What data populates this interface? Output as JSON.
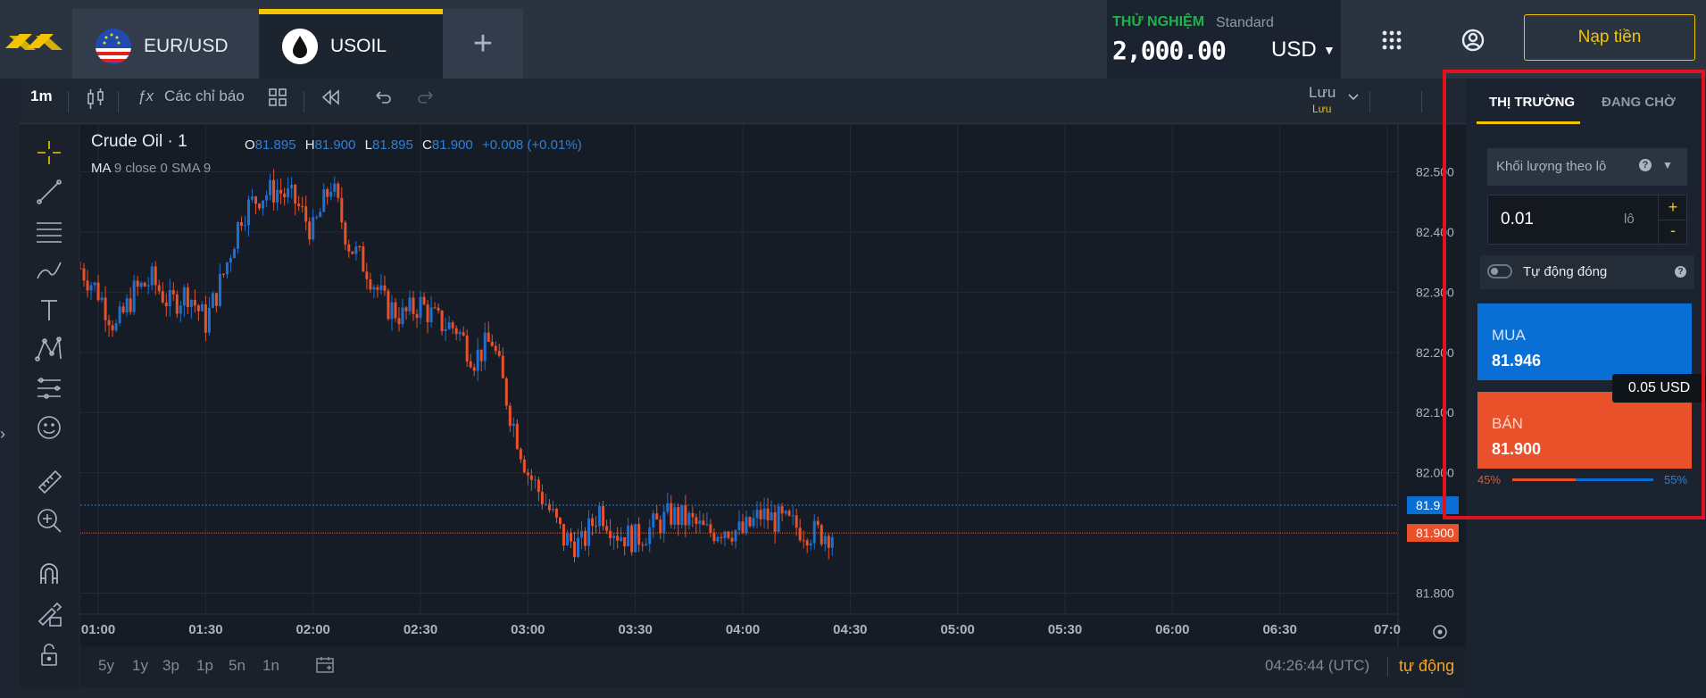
{
  "header": {
    "tabs": [
      {
        "label": "EUR/USD",
        "icon": "eu-us-flag-icon",
        "active": false
      },
      {
        "label": "USOIL",
        "icon": "oil-drop-icon",
        "active": true
      }
    ],
    "add_tab": "+",
    "account": {
      "mode": "THỬ NGHIỆM",
      "type": "Standard",
      "balance": "2,000.00",
      "currency": "USD"
    },
    "deposit_label": "Nạp tiền",
    "icons": [
      "exness-logo-icon",
      "apps-grid-icon",
      "user-profile-icon"
    ]
  },
  "toolbar": {
    "timeframe": "1m",
    "indicators_label": "Các chỉ báo",
    "save_label": "Lưu",
    "save_sub": "Lưu"
  },
  "chart": {
    "title": "Crude Oil · 1",
    "ohlc": {
      "o_label": "O",
      "o": "81.895",
      "h_label": "H",
      "h": "81.900",
      "l_label": "L",
      "l": "81.895",
      "c_label": "C",
      "c": "81.900",
      "change": "+0.008 (+0.01%)"
    },
    "ma_label": "MA",
    "ma_params": "9 close 0 SMA 9",
    "price_ticks": [
      "82.500",
      "82.400",
      "82.300",
      "82.200",
      "82.100",
      "82.000",
      "81.800"
    ],
    "time_ticks": [
      "01:00",
      "01:30",
      "02:00",
      "02:30",
      "03:00",
      "03:30",
      "04:00",
      "04:30",
      "05:00",
      "05:30",
      "06:00",
      "06:30",
      "07:0"
    ],
    "ask_label": "81.9",
    "bid_label": "81.900"
  },
  "chart_data": {
    "type": "candlestick",
    "symbol": "Crude Oil",
    "interval": "1",
    "ylim": [
      81.78,
      82.56
    ],
    "xlim": [
      "00:55",
      "07:03"
    ],
    "ask_line": 81.946,
    "bid_line": 81.9,
    "close_path": [
      {
        "t": "00:55",
        "v": 82.34
      },
      {
        "t": "01:00",
        "v": 82.3
      },
      {
        "t": "01:05",
        "v": 82.24
      },
      {
        "t": "01:10",
        "v": 82.3
      },
      {
        "t": "01:15",
        "v": 82.32
      },
      {
        "t": "01:20",
        "v": 82.28
      },
      {
        "t": "01:25",
        "v": 82.3
      },
      {
        "t": "01:30",
        "v": 82.25
      },
      {
        "t": "01:35",
        "v": 82.33
      },
      {
        "t": "01:40",
        "v": 82.43
      },
      {
        "t": "01:45",
        "v": 82.46
      },
      {
        "t": "01:50",
        "v": 82.47
      },
      {
        "t": "01:55",
        "v": 82.45
      },
      {
        "t": "02:00",
        "v": 82.4
      },
      {
        "t": "02:05",
        "v": 82.48
      },
      {
        "t": "02:10",
        "v": 82.38
      },
      {
        "t": "02:15",
        "v": 82.34
      },
      {
        "t": "02:20",
        "v": 82.28
      },
      {
        "t": "02:25",
        "v": 82.26
      },
      {
        "t": "02:30",
        "v": 82.28
      },
      {
        "t": "02:35",
        "v": 82.25
      },
      {
        "t": "02:40",
        "v": 82.24
      },
      {
        "t": "02:45",
        "v": 82.19
      },
      {
        "t": "02:50",
        "v": 82.22
      },
      {
        "t": "02:55",
        "v": 82.1
      },
      {
        "t": "03:00",
        "v": 82.0
      },
      {
        "t": "03:05",
        "v": 81.95
      },
      {
        "t": "03:10",
        "v": 81.89
      },
      {
        "t": "03:15",
        "v": 81.88
      },
      {
        "t": "03:20",
        "v": 81.94
      },
      {
        "t": "03:25",
        "v": 81.9
      },
      {
        "t": "03:30",
        "v": 81.89
      },
      {
        "t": "03:35",
        "v": 81.91
      },
      {
        "t": "03:40",
        "v": 81.93
      },
      {
        "t": "03:45",
        "v": 81.92
      },
      {
        "t": "03:50",
        "v": 81.9
      },
      {
        "t": "03:55",
        "v": 81.91
      },
      {
        "t": "04:00",
        "v": 81.9
      },
      {
        "t": "04:05",
        "v": 81.93
      },
      {
        "t": "04:10",
        "v": 81.92
      },
      {
        "t": "04:15",
        "v": 81.91
      },
      {
        "t": "04:20",
        "v": 81.9
      },
      {
        "t": "04:25",
        "v": 81.9
      }
    ]
  },
  "timeframes": [
    "5y",
    "1y",
    "3p",
    "1p",
    "5n",
    "1n"
  ],
  "bottom": {
    "time": "04:26:44 (UTC)",
    "auto": "tự động"
  },
  "panel": {
    "tabs": [
      "THỊ TRƯỜNG",
      "ĐANG CHỜ"
    ],
    "volume_mode": "Khối lượng theo lô",
    "volume_value": "0.01",
    "volume_unit": "lô",
    "plus": "+",
    "minus": "-",
    "autoclose_label": "Tự động đóng",
    "buy_label": "MUA",
    "buy_price": "81.946",
    "sell_label": "BÁN",
    "sell_price": "81.900",
    "spread": "0.05 USD",
    "sell_pct": "45%",
    "buy_pct": "55%",
    "sell_pct_value": 45,
    "buy_pct_value": 55
  },
  "colors": {
    "accent": "#f5c400",
    "buy": "#0a6fd4",
    "sell": "#e8512a",
    "up": "#1e6fd0",
    "down": "#e8512a",
    "highlight": "#e0121b"
  }
}
